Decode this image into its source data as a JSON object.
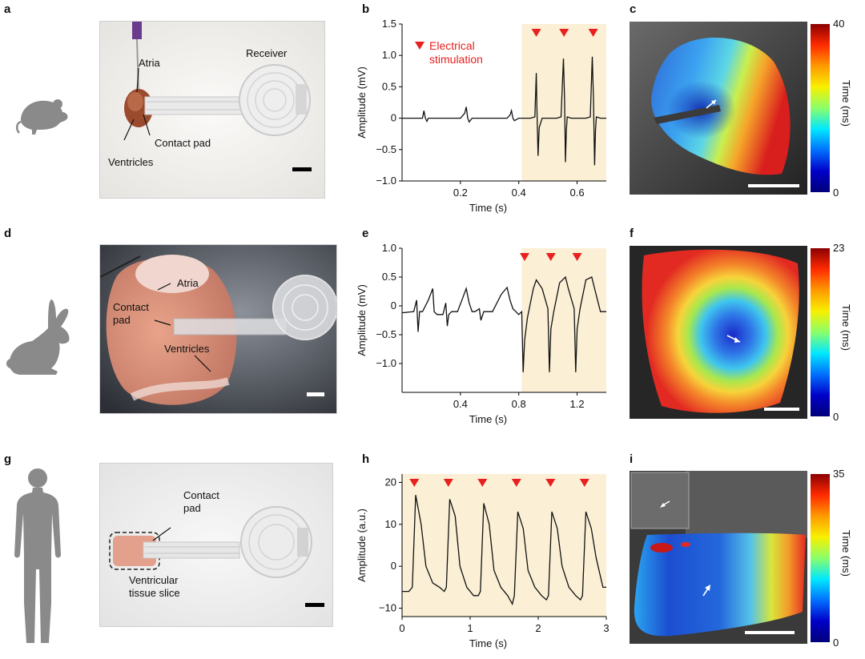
{
  "panels": {
    "a": {
      "letter": "a",
      "labels": {
        "atria": "Atria",
        "receiver": "Receiver",
        "contact_pad": "Contact pad",
        "ventricles": "Ventricles"
      }
    },
    "b": {
      "letter": "b",
      "legend": {
        "line1": "Electrical",
        "line2": "stimulation",
        "prefix": "Electrical\nstimulation"
      }
    },
    "c": {
      "letter": "c",
      "colorbar": {
        "max": "40",
        "min": "0",
        "label": "Time (ms)"
      }
    },
    "d": {
      "letter": "d",
      "labels": {
        "atria": "Atria",
        "contact1": "Contact",
        "contact2": "pad",
        "ventricles": "Ventricles"
      }
    },
    "e": {
      "letter": "e"
    },
    "f": {
      "letter": "f",
      "colorbar": {
        "max": "23",
        "min": "0",
        "label": "Time (ms)"
      }
    },
    "g": {
      "letter": "g",
      "labels": {
        "contact1": "Contact",
        "contact2": "pad",
        "tissue1": "Ventricular",
        "tissue2": "tissue slice"
      }
    },
    "h": {
      "letter": "h"
    },
    "i": {
      "letter": "i",
      "colorbar": {
        "max": "35",
        "min": "0",
        "label": "Time (ms)"
      }
    }
  },
  "colors": {
    "stim_shade": "#fbf0d6",
    "stim_marker": "#e8201e",
    "trace": "#111111",
    "silhouette": "#8a8a8a"
  },
  "chart_data": [
    {
      "id": "b",
      "type": "line",
      "title": "",
      "xlabel": "Time (s)",
      "ylabel": "Amplitude (mV)",
      "xlim": [
        0,
        0.7
      ],
      "ylim": [
        -1.0,
        1.5
      ],
      "xticks": [
        0.2,
        0.4,
        0.6
      ],
      "xtick_labels": [
        "0.2",
        "0.4",
        "0.6"
      ],
      "yticks": [
        -1.0,
        -0.5,
        0,
        0.5,
        1.0,
        1.5
      ],
      "ytick_labels": [
        "−1.0",
        "−0.5",
        "0",
        "0.5",
        "1.0",
        "1.5"
      ],
      "stim_region": [
        0.41,
        0.7
      ],
      "stim_markers": [
        0.46,
        0.555,
        0.655
      ],
      "legend": "Electrical stimulation",
      "series": [
        {
          "name": "signal",
          "x": [
            0,
            0.07,
            0.075,
            0.08,
            0.085,
            0.09,
            0.2,
            0.215,
            0.22,
            0.225,
            0.23,
            0.24,
            0.36,
            0.37,
            0.375,
            0.38,
            0.385,
            0.4,
            0.44,
            0.455,
            0.46,
            0.462,
            0.466,
            0.47,
            0.48,
            0.5,
            0.53,
            0.545,
            0.553,
            0.557,
            0.56,
            0.563,
            0.566,
            0.58,
            0.6,
            0.63,
            0.645,
            0.652,
            0.656,
            0.66,
            0.663,
            0.666,
            0.68,
            0.7
          ],
          "y": [
            0,
            0,
            0.12,
            0,
            -0.05,
            0,
            0,
            0.08,
            0.18,
            0,
            -0.06,
            0,
            0,
            0.05,
            0.12,
            0,
            -0.04,
            0,
            0,
            0.02,
            0.72,
            0.2,
            -0.6,
            -0.15,
            0,
            0,
            0,
            0.02,
            0.95,
            0.3,
            -0.7,
            -0.2,
            0.02,
            0,
            0,
            0,
            0.02,
            0.98,
            0.3,
            -0.75,
            -0.2,
            0.02,
            0,
            0
          ]
        }
      ]
    },
    {
      "id": "e",
      "type": "line",
      "title": "",
      "xlabel": "Time (s)",
      "ylabel": "Amplitude (mV)",
      "xlim": [
        0,
        1.4
      ],
      "ylim": [
        -1.5,
        1.0
      ],
      "xticks": [
        0.4,
        0.8,
        1.2
      ],
      "xtick_labels": [
        "0.4",
        "0.8",
        "1.2"
      ],
      "yticks": [
        -1.0,
        -0.5,
        0,
        0.5,
        1.0
      ],
      "ytick_labels": [
        "−1.0",
        "−0.5",
        "0",
        "0.5",
        "1.0"
      ],
      "stim_region": [
        0.82,
        1.4
      ],
      "stim_markers": [
        0.84,
        1.02,
        1.2
      ],
      "series": [
        {
          "name": "signal",
          "x": [
            0,
            0.08,
            0.1,
            0.11,
            0.12,
            0.14,
            0.18,
            0.21,
            0.22,
            0.24,
            0.28,
            0.3,
            0.31,
            0.32,
            0.34,
            0.38,
            0.41,
            0.44,
            0.46,
            0.48,
            0.5,
            0.53,
            0.54,
            0.56,
            0.62,
            0.68,
            0.72,
            0.74,
            0.76,
            0.78,
            0.8,
            0.82,
            0.83,
            0.84,
            0.86,
            0.9,
            0.92,
            0.96,
            1.0,
            1.01,
            1.02,
            1.04,
            1.08,
            1.12,
            1.14,
            1.18,
            1.19,
            1.2,
            1.22,
            1.26,
            1.3,
            1.32,
            1.36,
            1.4
          ],
          "y": [
            -0.12,
            -0.1,
            0.1,
            -0.45,
            -0.1,
            -0.1,
            0.1,
            0.3,
            -0.1,
            -0.15,
            -0.15,
            0.05,
            -0.35,
            -0.15,
            -0.1,
            -0.1,
            0.1,
            0.3,
            0.05,
            -0.1,
            -0.1,
            -0.05,
            -0.25,
            -0.1,
            -0.1,
            0.2,
            0.32,
            0.1,
            -0.05,
            -0.1,
            -0.15,
            -0.1,
            -1.15,
            -0.6,
            -0.2,
            0.3,
            0.45,
            0.3,
            -0.05,
            -1.15,
            -0.4,
            -0.1,
            0.4,
            0.5,
            0.3,
            -0.05,
            -1.15,
            -0.4,
            -0.05,
            0.45,
            0.5,
            0.3,
            -0.1,
            -0.1
          ]
        }
      ]
    },
    {
      "id": "h",
      "type": "line",
      "title": "",
      "xlabel": "Time (s)",
      "ylabel": "Amplitude (a.u.)",
      "xlim": [
        0,
        3
      ],
      "ylim": [
        -12,
        22
      ],
      "xticks": [
        0,
        1,
        2,
        3
      ],
      "xtick_labels": [
        "0",
        "1",
        "2",
        "3"
      ],
      "yticks": [
        -10,
        0,
        10,
        20
      ],
      "ytick_labels": [
        "−10",
        "0",
        "10",
        "20"
      ],
      "stim_region": [
        0,
        3
      ],
      "stim_markers": [
        0.18,
        0.68,
        1.18,
        1.68,
        2.18,
        2.68
      ],
      "series": [
        {
          "name": "signal",
          "x": [
            0,
            0.1,
            0.15,
            0.2,
            0.28,
            0.35,
            0.45,
            0.55,
            0.62,
            0.65,
            0.7,
            0.78,
            0.85,
            0.95,
            1.05,
            1.12,
            1.15,
            1.2,
            1.28,
            1.35,
            1.45,
            1.55,
            1.62,
            1.65,
            1.7,
            1.78,
            1.85,
            1.95,
            2.05,
            2.12,
            2.15,
            2.2,
            2.28,
            2.35,
            2.45,
            2.55,
            2.62,
            2.65,
            2.7,
            2.78,
            2.85,
            2.95,
            3.0
          ],
          "y": [
            -6,
            -6,
            -5,
            17,
            10,
            0,
            -4,
            -5,
            -6,
            -5,
            16,
            12,
            0,
            -5,
            -7,
            -7,
            -6,
            15,
            10,
            -1,
            -5,
            -7,
            -9,
            -7,
            13,
            9,
            -1,
            -5,
            -7,
            -8,
            -7,
            13,
            9,
            0,
            -5,
            -7,
            -8,
            -7,
            13,
            9,
            2,
            -5,
            -5
          ]
        }
      ]
    }
  ]
}
